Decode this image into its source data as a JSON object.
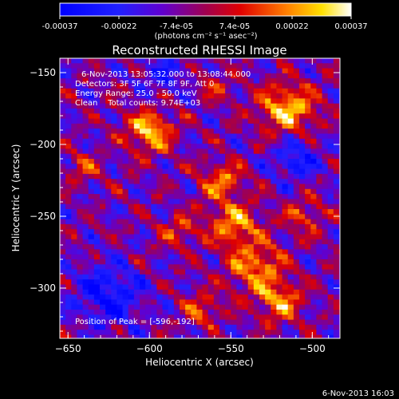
{
  "colorbar": {
    "tick_labels": [
      "-0.00037",
      "-0.00022",
      "-7.4e-05",
      "7.4e-05",
      "0.00022",
      "0.00037"
    ],
    "tick_values": [
      -0.00037,
      -0.00022,
      -7.4e-05,
      7.4e-05,
      0.00022,
      0.00037
    ],
    "range": [
      -0.00037,
      0.00037
    ],
    "unit_label": "(photons cm⁻² s⁻¹ asec⁻²)"
  },
  "overlay": {
    "time_range": "6-Nov-2013 13:05:32.000 to 13:08:44.000",
    "detectors": "Detectors: 3F 5F 6F 7F 8F 9F, Att 0",
    "energy": "Energy Range: 25.0 - 50.0 keV",
    "clean": "Clean    Total counts: 9.74E+03",
    "peak": "Position of Peak = [-596,-192]"
  },
  "footer_timestamp": "6-Nov-2013 16:03",
  "chart_data": {
    "type": "heatmap",
    "title": "Reconstructed RHESSI Image",
    "xlabel": "Heliocentric X (arcsec)",
    "ylabel": "Heliocentric Y (arcsec)",
    "xlim": [
      -655,
      -483
    ],
    "ylim": [
      -335,
      -140
    ],
    "x_ticks": [
      -650,
      -600,
      -550,
      -500
    ],
    "y_ticks": [
      -150,
      -200,
      -250,
      -300
    ],
    "x_tick_labels": [
      "−650",
      "−600",
      "−550",
      "−500"
    ],
    "y_tick_labels": [
      "−150",
      "−200",
      "−250",
      "−300"
    ],
    "colormap": "blue-purple-red-yellow-white (RHESSI flux)",
    "grid": false,
    "peak_position": [
      -596,
      -192
    ],
    "bright_sources": [
      {
        "x": -600,
        "y": -191,
        "amplitude": 0.00036,
        "sigma": 10
      },
      {
        "x": -515,
        "y": -175,
        "amplitude": 0.00036,
        "sigma": 12
      },
      {
        "x": -555,
        "y": -225,
        "amplitude": 0.00026,
        "sigma": 9
      },
      {
        "x": -548,
        "y": -255,
        "amplitude": 0.00028,
        "sigma": 11
      },
      {
        "x": -535,
        "y": -285,
        "amplitude": 0.0003,
        "sigma": 12
      },
      {
        "x": -520,
        "y": -310,
        "amplitude": 0.00028,
        "sigma": 10
      },
      {
        "x": -568,
        "y": -315,
        "amplitude": 0.00022,
        "sigma": 8
      },
      {
        "x": -640,
        "y": -215,
        "amplitude": 0.00018,
        "sigma": 7
      },
      {
        "x": -582,
        "y": -260,
        "amplitude": 0.00018,
        "sigma": 8
      },
      {
        "x": -505,
        "y": -250,
        "amplitude": 0.00018,
        "sigma": 9
      },
      {
        "x": -560,
        "y": -160,
        "amplitude": 0.00014,
        "sigma": 8
      }
    ],
    "dim_regions": [
      {
        "x": -625,
        "y": -305,
        "amplitude": -0.00025,
        "sigma": 14
      },
      {
        "x": -510,
        "y": -210,
        "amplitude": -0.00022,
        "sigma": 10
      },
      {
        "x": -590,
        "y": -150,
        "amplitude": -0.00015,
        "sigma": 10
      }
    ]
  }
}
